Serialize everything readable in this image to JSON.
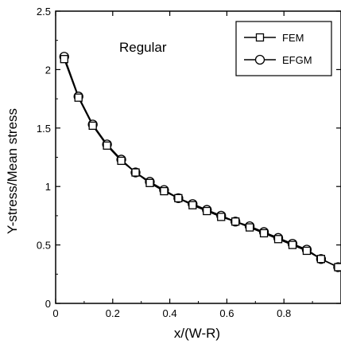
{
  "chart_data": {
    "type": "line",
    "title": "",
    "annotation": "Regular",
    "xlabel": "x/(W-R)",
    "ylabel": "Y-stress/Mean stress",
    "xlim": [
      0,
      1.0
    ],
    "ylim": [
      0,
      2.5
    ],
    "xticks": [
      0,
      0.2,
      0.4,
      0.6,
      0.8
    ],
    "xtick_labels": [
      "0",
      "0.2",
      "0.4",
      "0.6",
      "0.8"
    ],
    "yticks": [
      0,
      0.5,
      1,
      1.5,
      2,
      2.5
    ],
    "ytick_labels": [
      "0",
      "0.5",
      "1",
      "1.5",
      "2",
      "2.5"
    ],
    "grid": false,
    "legend_position": "top-right",
    "series": [
      {
        "name": "FEM",
        "marker": "square",
        "x": [
          0.03,
          0.08,
          0.13,
          0.18,
          0.23,
          0.28,
          0.33,
          0.38,
          0.43,
          0.48,
          0.53,
          0.58,
          0.63,
          0.68,
          0.73,
          0.78,
          0.83,
          0.88,
          0.93,
          0.99
        ],
        "values": [
          2.09,
          1.76,
          1.52,
          1.35,
          1.22,
          1.12,
          1.03,
          0.96,
          0.9,
          0.84,
          0.79,
          0.74,
          0.7,
          0.65,
          0.6,
          0.55,
          0.5,
          0.45,
          0.38,
          0.31
        ]
      },
      {
        "name": "EFGM",
        "marker": "circle",
        "x": [
          0.03,
          0.08,
          0.13,
          0.18,
          0.23,
          0.28,
          0.33,
          0.38,
          0.43,
          0.48,
          0.53,
          0.58,
          0.63,
          0.68,
          0.73,
          0.78,
          0.83,
          0.88,
          0.93,
          0.99
        ],
        "values": [
          2.11,
          1.77,
          1.53,
          1.36,
          1.23,
          1.12,
          1.04,
          0.97,
          0.9,
          0.85,
          0.8,
          0.75,
          0.7,
          0.66,
          0.61,
          0.56,
          0.51,
          0.46,
          0.38,
          0.31
        ]
      }
    ]
  }
}
